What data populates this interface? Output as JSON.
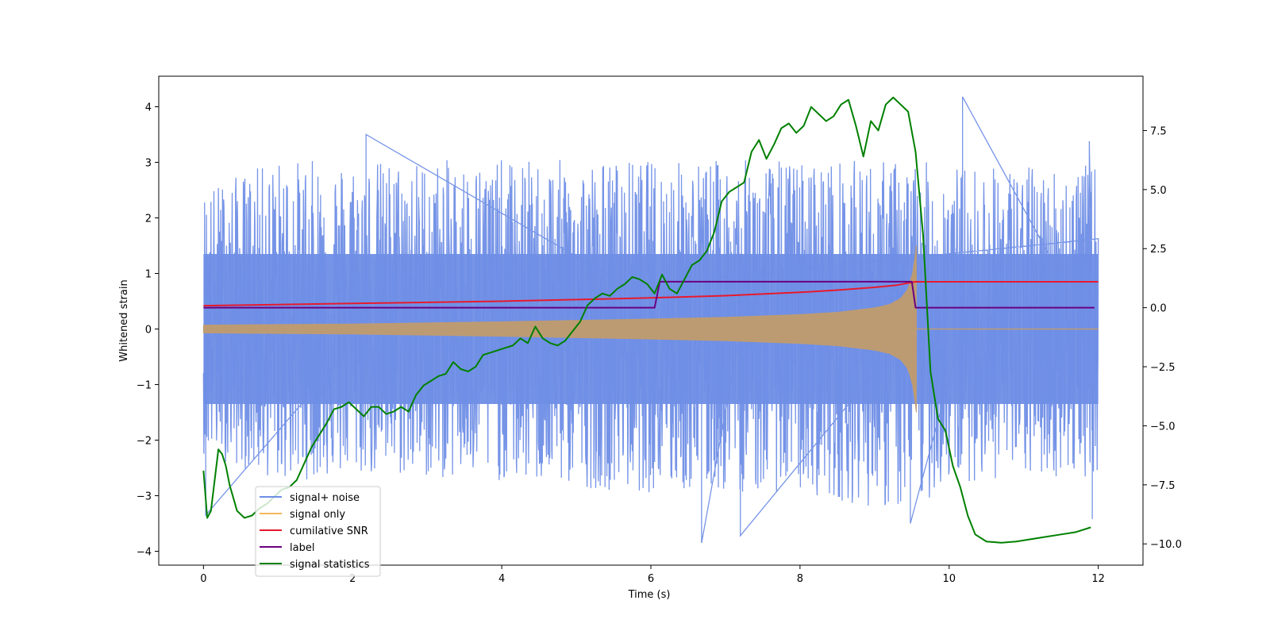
{
  "chart_data": {
    "type": "line",
    "xlabel": "Time (s)",
    "ylabel": "Whitened strain",
    "xlim": [
      -0.6,
      12.6
    ],
    "ylim": [
      -4.25,
      4.55
    ],
    "y2lim": [
      -10.9,
      9.8
    ],
    "grid": false,
    "legend_position": "lower-left",
    "x_ticks": [
      0,
      2,
      4,
      6,
      8,
      10,
      12
    ],
    "x_tick_labels": [
      "0",
      "2",
      "4",
      "6",
      "8",
      "10",
      "12"
    ],
    "y_ticks": [
      -4,
      -3,
      -2,
      -1,
      0,
      1,
      2,
      3,
      4
    ],
    "y_tick_labels": [
      "−4",
      "−3",
      "−2",
      "−1",
      "0",
      "1",
      "2",
      "3",
      "4"
    ],
    "y2_ticks": [
      -10,
      -7.5,
      -5,
      -2.5,
      0,
      2.5,
      5,
      7.5
    ],
    "y2_tick_labels": [
      "−10.0",
      "−7.5",
      "−5.0",
      "−2.5",
      "0.0",
      "2.5",
      "5.0",
      "7.5"
    ],
    "series": [
      {
        "name": "signal+ noise",
        "color": "#6f8ee6",
        "axis": "left",
        "description_kind": "noise",
        "x_range": [
          0,
          12
        ],
        "envelope": [
          {
            "x": 0,
            "low": -2.1,
            "high": 2.4
          },
          {
            "x": 1,
            "low": -2.6,
            "high": 2.9
          },
          {
            "x": 2,
            "low": -2.5,
            "high": 2.9
          },
          {
            "x": 4,
            "low": -2.6,
            "high": 2.9
          },
          {
            "x": 6,
            "low": -2.8,
            "high": 2.9
          },
          {
            "x": 8,
            "low": -2.8,
            "high": 2.9
          },
          {
            "x": 9.5,
            "low": -3.2,
            "high": 2.9
          },
          {
            "x": 10,
            "low": -2.6,
            "high": 2.8
          },
          {
            "x": 12,
            "low": -2.5,
            "high": 2.8
          }
        ],
        "spikes": [
          {
            "x": 0.03,
            "y": -3.35
          },
          {
            "x": 2.18,
            "y": 3.5
          },
          {
            "x": 6.68,
            "y": -3.85
          },
          {
            "x": 7.2,
            "y": -3.72
          },
          {
            "x": 9.48,
            "y": -3.5
          },
          {
            "x": 10.18,
            "y": 4.18
          },
          {
            "x": 11.88,
            "y": 3.38
          },
          {
            "x": 11.92,
            "y": -3.42
          }
        ]
      },
      {
        "name": "signal only",
        "color": "#f5b75a",
        "axis": "left",
        "x": [
          0,
          2,
          4,
          6,
          7,
          8,
          8.5,
          9,
          9.2,
          9.35,
          9.45,
          9.52,
          9.56
        ],
        "amplitude": [
          0.07,
          0.09,
          0.13,
          0.18,
          0.21,
          0.26,
          0.3,
          0.38,
          0.44,
          0.55,
          0.72,
          1.05,
          1.5
        ]
      },
      {
        "name": "cumilative SNR",
        "color": "#e8192c",
        "axis": "left",
        "x": [
          0,
          2,
          4,
          6,
          7,
          8,
          8.5,
          9,
          9.3,
          9.5,
          9.55,
          12
        ],
        "values": [
          0.42,
          0.46,
          0.5,
          0.56,
          0.6,
          0.66,
          0.7,
          0.75,
          0.79,
          0.84,
          0.85,
          0.85
        ]
      },
      {
        "name": "label",
        "color": "#6a0080",
        "axis": "right",
        "x": [
          0,
          6.05,
          6.12,
          9.5,
          9.55,
          11.95
        ],
        "values": [
          0.0,
          0.0,
          1.1,
          1.1,
          0.0,
          0.0
        ]
      },
      {
        "name": "signal statistics",
        "color": "#008000",
        "axis": "right",
        "x": [
          0,
          0.05,
          0.1,
          0.2,
          0.25,
          0.3,
          0.35,
          0.45,
          0.55,
          0.65,
          0.75,
          0.85,
          0.95,
          1.05,
          1.15,
          1.25,
          1.35,
          1.45,
          1.55,
          1.65,
          1.75,
          1.85,
          1.95,
          2.05,
          2.15,
          2.25,
          2.35,
          2.45,
          2.55,
          2.65,
          2.75,
          2.85,
          2.95,
          3.05,
          3.15,
          3.25,
          3.35,
          3.45,
          3.55,
          3.65,
          3.75,
          3.85,
          3.95,
          4.05,
          4.15,
          4.25,
          4.35,
          4.45,
          4.55,
          4.65,
          4.75,
          4.85,
          4.95,
          5.05,
          5.15,
          5.25,
          5.35,
          5.45,
          5.55,
          5.65,
          5.75,
          5.85,
          5.95,
          6.05,
          6.15,
          6.25,
          6.35,
          6.45,
          6.55,
          6.65,
          6.75,
          6.85,
          6.95,
          7.05,
          7.15,
          7.25,
          7.35,
          7.45,
          7.55,
          7.65,
          7.75,
          7.85,
          7.95,
          8.05,
          8.15,
          8.25,
          8.35,
          8.45,
          8.55,
          8.65,
          8.75,
          8.85,
          8.95,
          9.05,
          9.15,
          9.25,
          9.35,
          9.45,
          9.55,
          9.65,
          9.75,
          9.85,
          9.95,
          10.05,
          10.15,
          10.25,
          10.35,
          10.5,
          10.7,
          10.9,
          11.1,
          11.3,
          11.5,
          11.7,
          11.9
        ],
        "values": [
          -6.9,
          -8.9,
          -8.6,
          -6.0,
          -6.2,
          -6.7,
          -7.5,
          -8.6,
          -8.9,
          -8.8,
          -8.5,
          -8.3,
          -8.0,
          -7.7,
          -7.6,
          -7.3,
          -6.6,
          -5.9,
          -5.4,
          -4.9,
          -4.3,
          -4.2,
          -4.0,
          -4.3,
          -4.6,
          -4.2,
          -4.2,
          -4.5,
          -4.4,
          -4.2,
          -4.4,
          -3.7,
          -3.3,
          -3.1,
          -2.9,
          -2.8,
          -2.3,
          -2.6,
          -2.7,
          -2.5,
          -2.0,
          -1.9,
          -1.8,
          -1.7,
          -1.6,
          -1.3,
          -1.5,
          -0.8,
          -1.3,
          -1.5,
          -1.6,
          -1.4,
          -1.0,
          -0.6,
          0.1,
          0.4,
          0.6,
          0.5,
          0.8,
          1.0,
          1.3,
          1.2,
          1.0,
          0.6,
          1.4,
          0.8,
          0.6,
          1.2,
          1.8,
          2.0,
          2.4,
          3.2,
          4.5,
          4.9,
          5.1,
          5.3,
          6.6,
          7.1,
          6.3,
          6.9,
          7.6,
          7.8,
          7.4,
          7.7,
          8.5,
          8.2,
          7.9,
          8.1,
          8.6,
          8.8,
          7.7,
          6.4,
          7.9,
          7.5,
          8.6,
          8.9,
          8.6,
          8.3,
          6.6,
          3.1,
          -2.7,
          -4.7,
          -5.2,
          -6.7,
          -7.6,
          -8.8,
          -9.6,
          -9.9,
          -9.95,
          -9.9,
          -9.8,
          -9.7,
          -9.6,
          -9.5,
          -9.3
        ]
      }
    ]
  }
}
